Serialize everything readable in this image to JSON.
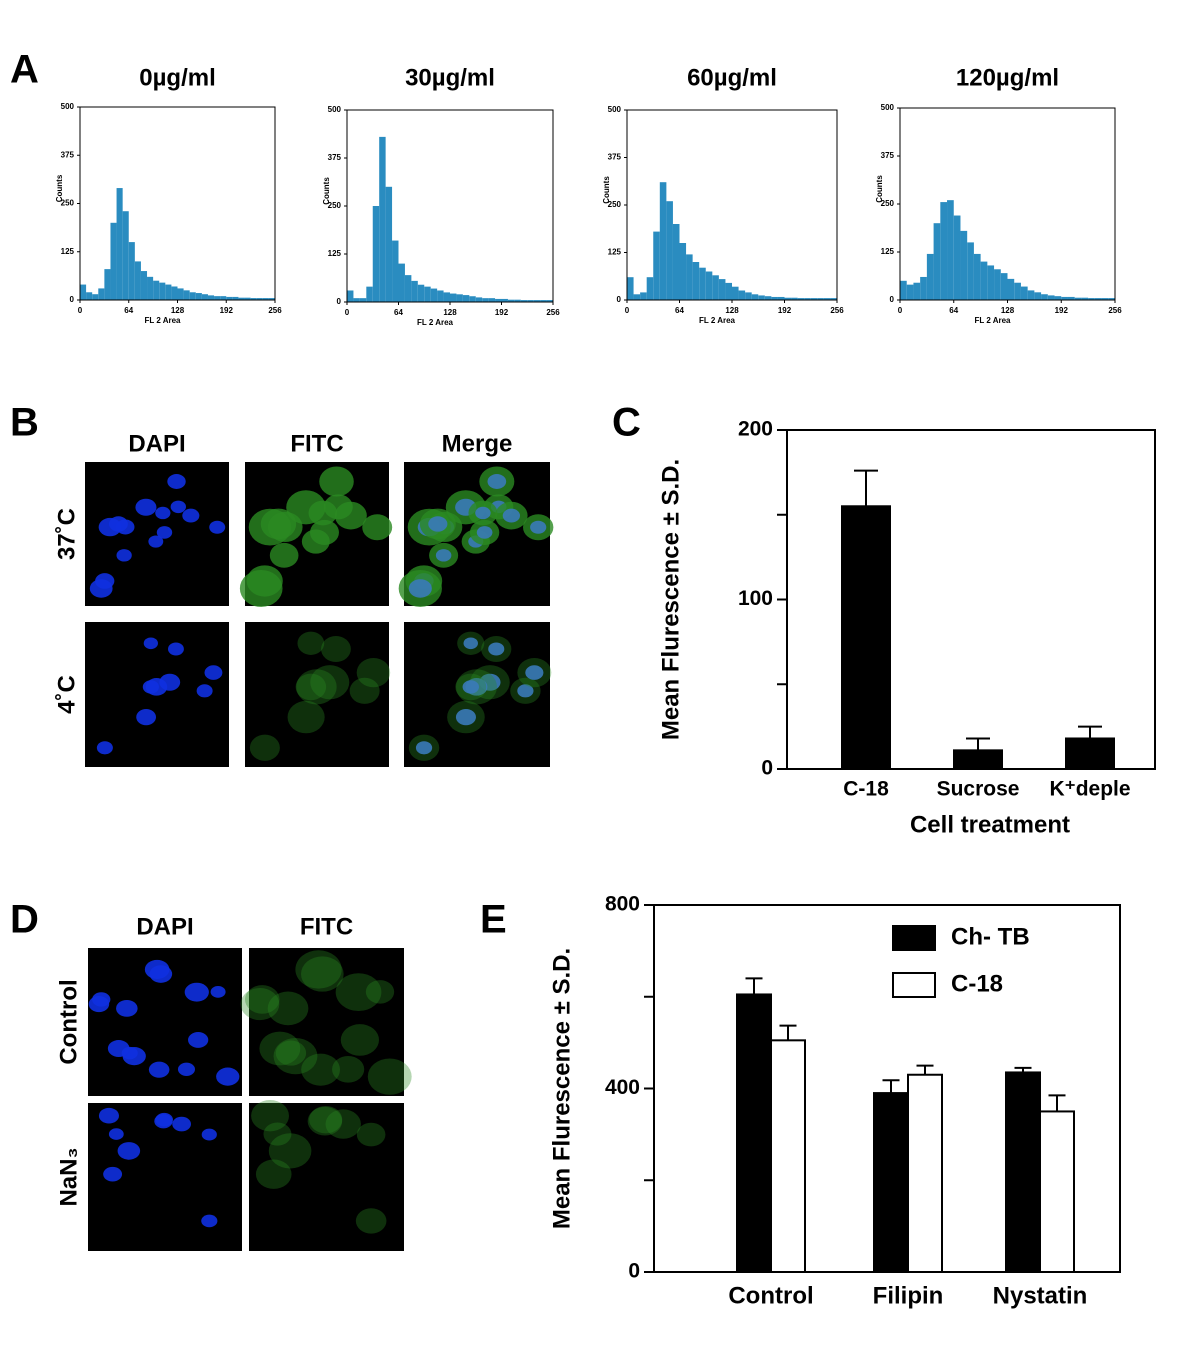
{
  "chart_data": [
    {
      "type": "histogram",
      "panel": "A",
      "title": "0µg/ml",
      "x_label": "FL 2 Area",
      "y_label": "Counts",
      "color": "#2a8cc0",
      "bins": [
        0,
        8,
        16,
        24,
        32,
        40,
        48,
        56,
        64,
        72,
        80,
        88,
        96,
        104,
        112,
        120,
        128,
        136,
        144,
        152,
        160,
        168,
        176,
        184,
        192,
        200,
        208,
        216,
        224,
        232,
        240,
        248,
        256
      ],
      "counts": [
        40,
        20,
        15,
        30,
        80,
        200,
        290,
        230,
        150,
        100,
        75,
        60,
        50,
        45,
        40,
        35,
        30,
        25,
        20,
        18,
        15,
        12,
        10,
        10,
        8,
        8,
        6,
        6,
        5,
        5,
        5,
        5
      ],
      "xlim": [
        0,
        256
      ],
      "xticks": [
        0,
        64,
        128,
        192,
        256
      ],
      "ylim": [
        0,
        500
      ],
      "yticks": [
        0,
        125,
        250,
        375,
        500
      ]
    },
    {
      "type": "histogram",
      "title": "30µg/ml",
      "x_label": "FL 2 Area",
      "y_label": "Counts",
      "color": "#2a8cc0",
      "bins": [
        0,
        8,
        16,
        24,
        32,
        40,
        48,
        56,
        64,
        72,
        80,
        88,
        96,
        104,
        112,
        120,
        128,
        136,
        144,
        152,
        160,
        168,
        176,
        184,
        192,
        200,
        208,
        216,
        224,
        232,
        240,
        248,
        256
      ],
      "counts": [
        30,
        10,
        10,
        40,
        250,
        430,
        300,
        160,
        100,
        70,
        55,
        45,
        40,
        35,
        30,
        25,
        22,
        20,
        18,
        15,
        12,
        10,
        10,
        8,
        8,
        6,
        6,
        5,
        5,
        5,
        5,
        5
      ],
      "xlim": [
        0,
        256
      ],
      "xticks": [
        0,
        64,
        128,
        192,
        256
      ],
      "ylim": [
        0,
        500
      ],
      "yticks": [
        0,
        125,
        250,
        375,
        500
      ]
    },
    {
      "type": "histogram",
      "title": "60µg/ml",
      "x_label": "FL 2 Area",
      "y_label": "Counts",
      "color": "#2a8cc0",
      "bins": [
        0,
        8,
        16,
        24,
        32,
        40,
        48,
        56,
        64,
        72,
        80,
        88,
        96,
        104,
        112,
        120,
        128,
        136,
        144,
        152,
        160,
        168,
        176,
        184,
        192,
        200,
        208,
        216,
        224,
        232,
        240,
        248,
        256
      ],
      "counts": [
        60,
        15,
        20,
        60,
        180,
        310,
        260,
        200,
        150,
        120,
        100,
        85,
        75,
        65,
        55,
        45,
        35,
        25,
        20,
        15,
        12,
        10,
        8,
        8,
        6,
        6,
        5,
        5,
        5,
        5,
        5,
        5
      ],
      "xlim": [
        0,
        256
      ],
      "xticks": [
        0,
        64,
        128,
        192,
        256
      ],
      "ylim": [
        0,
        500
      ],
      "yticks": [
        0,
        125,
        250,
        375,
        500
      ]
    },
    {
      "type": "histogram",
      "title": "120µg/ml",
      "x_label": "FL 2 Area",
      "y_label": "Counts",
      "color": "#2a8cc0",
      "bins": [
        0,
        8,
        16,
        24,
        32,
        40,
        48,
        56,
        64,
        72,
        80,
        88,
        96,
        104,
        112,
        120,
        128,
        136,
        144,
        152,
        160,
        168,
        176,
        184,
        192,
        200,
        208,
        216,
        224,
        232,
        240,
        248,
        256
      ],
      "counts": [
        50,
        40,
        45,
        60,
        120,
        200,
        255,
        260,
        220,
        180,
        150,
        120,
        100,
        90,
        80,
        70,
        55,
        45,
        35,
        25,
        20,
        15,
        12,
        10,
        8,
        8,
        6,
        6,
        5,
        5,
        5,
        5
      ],
      "xlim": [
        0,
        256
      ],
      "xticks": [
        0,
        64,
        128,
        192,
        256
      ],
      "ylim": [
        0,
        500
      ],
      "yticks": [
        0,
        125,
        250,
        375,
        500
      ]
    },
    {
      "type": "bar",
      "panel": "C",
      "x_label": "Cell treatment",
      "y_label": "Mean  Flurescence ± S.D.",
      "categories": [
        "C-18",
        "Sucrose",
        "K⁺deple"
      ],
      "values": [
        155,
        11,
        18
      ],
      "errors": [
        21,
        7,
        7
      ],
      "color": "#000000",
      "ylim": [
        0,
        200
      ],
      "yticks": [
        0,
        100,
        200
      ],
      "minor_yticks": [
        50,
        150
      ]
    },
    {
      "type": "bar",
      "panel": "E",
      "y_label": "Mean  Flurescence ± S.D.",
      "categories": [
        "Control",
        "Filipin",
        "Nystatin"
      ],
      "series": [
        {
          "name": "Ch- TB",
          "color": "#000000",
          "values": [
            605,
            390,
            435
          ],
          "errors": [
            35,
            28,
            10
          ]
        },
        {
          "name": "C-18",
          "color": "#ffffff",
          "values": [
            505,
            430,
            350
          ],
          "errors": [
            32,
            20,
            35
          ]
        }
      ],
      "legend": "upper right",
      "ylim": [
        0,
        800
      ],
      "yticks": [
        0,
        400,
        800
      ],
      "minor_yticks": [
        200,
        600
      ]
    }
  ],
  "images": [
    {
      "panel": "B",
      "columns": [
        "DAPI",
        "FITC",
        "Merge"
      ],
      "rows": [
        "37˚C",
        "4˚C"
      ]
    },
    {
      "panel": "D",
      "columns": [
        "DAPI",
        "FITC"
      ],
      "rows": [
        "Control",
        "NaN₃"
      ]
    }
  ]
}
